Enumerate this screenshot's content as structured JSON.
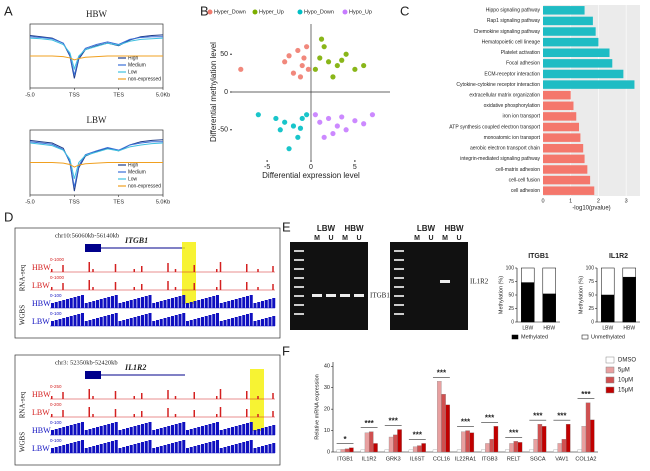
{
  "panel_labels": [
    "A",
    "B",
    "C",
    "D",
    "E",
    "F"
  ],
  "chart_data": [
    {
      "type": "line",
      "title": "HBW",
      "x": [
        0,
        0.25,
        0.5,
        0.75,
        0.9,
        1,
        1.1,
        1.25,
        1.5,
        1.75,
        2,
        2.25,
        2.5,
        2.75,
        3
      ],
      "xlim": [
        0,
        3
      ],
      "xticks": [
        {
          "value": 0,
          "label": "-5.0"
        },
        {
          "value": 1,
          "label": "TSS"
        },
        {
          "value": 2,
          "label": "TES"
        },
        {
          "value": 3,
          "label": "5.0Kb"
        }
      ],
      "ylim": [
        0,
        1
      ],
      "legend": "lower right",
      "series": [
        {
          "name": "High",
          "color": "#1f3c88",
          "values": [
            0.82,
            0.8,
            0.78,
            0.7,
            0.5,
            0.15,
            0.45,
            0.6,
            0.66,
            0.7,
            0.66,
            0.75,
            0.8,
            0.82,
            0.83
          ]
        },
        {
          "name": "Medium",
          "color": "#3a6fd8",
          "values": [
            0.8,
            0.79,
            0.77,
            0.7,
            0.52,
            0.2,
            0.48,
            0.62,
            0.68,
            0.72,
            0.68,
            0.76,
            0.79,
            0.8,
            0.8
          ]
        },
        {
          "name": "Low",
          "color": "#40c0e0",
          "values": [
            0.78,
            0.77,
            0.75,
            0.68,
            0.55,
            0.3,
            0.5,
            0.6,
            0.65,
            0.7,
            0.67,
            0.73,
            0.76,
            0.77,
            0.78
          ]
        },
        {
          "name": "non-expressed",
          "color": "#f0a020",
          "values": [
            0.5,
            0.5,
            0.5,
            0.49,
            0.47,
            0.44,
            0.46,
            0.48,
            0.49,
            0.5,
            0.5,
            0.5,
            0.5,
            0.5,
            0.5
          ]
        }
      ]
    },
    {
      "type": "line",
      "title": "LBW",
      "x": [
        0,
        0.25,
        0.5,
        0.75,
        0.9,
        1,
        1.1,
        1.25,
        1.5,
        1.75,
        2,
        2.25,
        2.5,
        2.75,
        3
      ],
      "xlim": [
        0,
        3
      ],
      "xticks": [
        {
          "value": 0,
          "label": "-5.0"
        },
        {
          "value": 1,
          "label": "TSS"
        },
        {
          "value": 2,
          "label": "TES"
        },
        {
          "value": 3,
          "label": "5.0Kb"
        }
      ],
      "ylim": [
        0,
        1
      ],
      "legend": "lower right",
      "series": [
        {
          "name": "High",
          "color": "#1f3c88",
          "values": [
            0.84,
            0.82,
            0.8,
            0.72,
            0.5,
            0.06,
            0.42,
            0.6,
            0.67,
            0.72,
            0.68,
            0.77,
            0.82,
            0.84,
            0.85
          ]
        },
        {
          "name": "Medium",
          "color": "#3a6fd8",
          "values": [
            0.82,
            0.8,
            0.78,
            0.7,
            0.52,
            0.12,
            0.45,
            0.62,
            0.68,
            0.73,
            0.69,
            0.77,
            0.8,
            0.82,
            0.82
          ]
        },
        {
          "name": "Low",
          "color": "#40c0e0",
          "values": [
            0.8,
            0.78,
            0.76,
            0.69,
            0.55,
            0.25,
            0.5,
            0.61,
            0.66,
            0.71,
            0.68,
            0.74,
            0.77,
            0.79,
            0.8
          ]
        },
        {
          "name": "non-expressed",
          "color": "#f0a020",
          "values": [
            0.5,
            0.5,
            0.5,
            0.49,
            0.47,
            0.43,
            0.46,
            0.48,
            0.49,
            0.5,
            0.5,
            0.5,
            0.5,
            0.5,
            0.5
          ]
        }
      ]
    },
    {
      "type": "scatter",
      "xlabel": "Differential expression level",
      "ylabel": "Differential methylation level",
      "xlim": [
        -9,
        9
      ],
      "xticks": [
        -5,
        0,
        5
      ],
      "ylim": [
        -90,
        90
      ],
      "yticks": [
        -50,
        0,
        50
      ],
      "legend": "top",
      "series": [
        {
          "name": "Hyper_Down",
          "color": "#f07b6e",
          "x": [
            -8,
            -3,
            -2,
            -1.5,
            -1,
            -0.8,
            -0.5,
            -0.3,
            -1.2,
            -2.5
          ],
          "values": [
            30,
            40,
            25,
            55,
            35,
            45,
            60,
            30,
            20,
            48
          ]
        },
        {
          "name": "Hyper_Up",
          "color": "#7cae00",
          "x": [
            0.5,
            1,
            1.5,
            2,
            3,
            4,
            5,
            6,
            2.5,
            1.2,
            3.5
          ],
          "values": [
            30,
            45,
            60,
            40,
            35,
            50,
            30,
            35,
            20,
            70,
            42
          ]
        },
        {
          "name": "Hypo_Down",
          "color": "#00bfc4",
          "x": [
            -6,
            -4,
            -3,
            -2,
            -1.5,
            -1,
            -0.5,
            -2.5,
            -3.5,
            -1.2
          ],
          "values": [
            -30,
            -35,
            -40,
            -45,
            -60,
            -35,
            -30,
            -75,
            -50,
            -48
          ]
        },
        {
          "name": "Hypo_Up",
          "color": "#c77cff",
          "x": [
            0.5,
            1,
            2,
            3,
            4,
            5,
            6,
            7,
            1.5,
            2.5,
            3.5
          ],
          "values": [
            -30,
            -40,
            -35,
            -45,
            -50,
            -38,
            -42,
            -30,
            -60,
            -55,
            -33
          ]
        }
      ]
    },
    {
      "type": "barh",
      "xlabel": "-log10(pvalue)",
      "xlim": [
        0,
        3.5
      ],
      "xticks": [
        0,
        1,
        2,
        3
      ],
      "categories": [
        "Hippo signaling pathway",
        "Rap1 signaling pathway",
        "Chemokine signaling pathway",
        "Hematopoietic cell lineage",
        "Platelet activation",
        "Focal adhesion",
        "ECM-receptor interaction",
        "Cytokine-cytokine receptor interaction",
        "extracellular matrix organization",
        "oxidative phosphorylation",
        "iron ion transport",
        "ATP synthesis coupled electron transport",
        "monoatomic ion transport",
        "aerobic electron transport chain",
        "integrin-mediated signaling pathway",
        "cell-matrix adhesion",
        "cell-cell fusion",
        "cell adhesion"
      ],
      "values": [
        1.5,
        1.8,
        1.9,
        2.0,
        2.4,
        2.5,
        2.9,
        3.3,
        1.0,
        1.1,
        1.2,
        1.3,
        1.35,
        1.45,
        1.5,
        1.6,
        1.7,
        1.85
      ],
      "colors": [
        "#1fbcc4",
        "#1fbcc4",
        "#1fbcc4",
        "#1fbcc4",
        "#1fbcc4",
        "#1fbcc4",
        "#1fbcc4",
        "#1fbcc4",
        "#f4776c",
        "#f4776c",
        "#f4776c",
        "#f4776c",
        "#f4776c",
        "#f4776c",
        "#f4776c",
        "#f4776c",
        "#f4776c",
        "#f4776c"
      ]
    },
    {
      "type": "stacked_bar",
      "title": "ITGB1",
      "ylabel": "Methylation (%)",
      "ylim": [
        0,
        100
      ],
      "yticks": [
        0,
        25,
        50,
        75,
        100
      ],
      "categories": [
        "LBW",
        "HBW"
      ],
      "legend": "bottom",
      "series": [
        {
          "name": "Methylated",
          "color": "#000000",
          "values": [
            73,
            52
          ]
        },
        {
          "name": "Unmethylated",
          "color": "#ffffff",
          "values": [
            27,
            48
          ]
        }
      ]
    },
    {
      "type": "stacked_bar",
      "title": "IL1R2",
      "ylabel": "Methylation (%)",
      "ylim": [
        0,
        100
      ],
      "yticks": [
        0,
        25,
        50,
        75,
        100
      ],
      "categories": [
        "LBW",
        "HBW"
      ],
      "series": [
        {
          "color": "#000000",
          "values": [
            50,
            83
          ]
        },
        {
          "color": "#ffffff",
          "values": [
            50,
            17
          ]
        }
      ]
    },
    {
      "type": "bar",
      "ylabel": "Relative mRNA expression",
      "ylim": [
        0,
        42
      ],
      "yticks": [
        0,
        10,
        20,
        30,
        40
      ],
      "legend": "upper right",
      "categories": [
        "ITGB1",
        "IL1R2",
        "GRK3",
        "IL6ST",
        "CCL16",
        "IL22RA1",
        "ITGB3",
        "RELT",
        "SGCA",
        "VAV1",
        "COL1A2"
      ],
      "significance": [
        "*",
        "***",
        "***",
        "***",
        "***",
        "***",
        "***",
        "***",
        "***",
        "***",
        "***"
      ],
      "series": [
        {
          "name": "DMSO",
          "color": "#ffffff",
          "values": [
            1,
            1,
            1,
            1,
            1,
            1,
            1,
            1,
            1,
            1,
            1
          ]
        },
        {
          "name": "5μM",
          "color": "#e8a0a0",
          "values": [
            1.2,
            9,
            7,
            2.5,
            33,
            9.5,
            4,
            4,
            6,
            4,
            12
          ]
        },
        {
          "name": "10μM",
          "color": "#d05050",
          "values": [
            1.5,
            9.5,
            8,
            3,
            27,
            10,
            6,
            5,
            13,
            6,
            23
          ]
        },
        {
          "name": "15μM",
          "color": "#c00000",
          "values": [
            2,
            4,
            10.5,
            4,
            22,
            9,
            12,
            4.5,
            12,
            13,
            15
          ]
        }
      ]
    }
  ],
  "tracks": [
    {
      "region": "chr10:56060kb-56140kb",
      "gene": "ITGB1",
      "rna_label": "RNA-seq",
      "wgbs_label": "WGBS",
      "rows": [
        {
          "name": "HBW",
          "range": "0-1000"
        },
        {
          "name": "LBW",
          "range": "0-1000"
        },
        {
          "name": "HBW",
          "range": "0-100"
        },
        {
          "name": "LBW",
          "range": "0-100"
        }
      ]
    },
    {
      "region": "chr3: 52350kb-52420kb",
      "gene": "IL1R2",
      "rna_label": "RNA-seq",
      "wgbs_label": "WGBS",
      "rows": [
        {
          "name": "HBW",
          "range": "0-250"
        },
        {
          "name": "LBW",
          "range": "0-200"
        },
        {
          "name": "HBW",
          "range": "0-100"
        },
        {
          "name": "LBW",
          "range": "0-100"
        }
      ]
    }
  ],
  "gels": [
    {
      "groups": [
        "LBW",
        "HBW"
      ],
      "lanes": [
        "M",
        "U",
        "M",
        "U"
      ],
      "gene": "ITGB1"
    },
    {
      "groups": [
        "LBW",
        "HBW"
      ],
      "lanes": [
        "M",
        "U",
        "M",
        "U"
      ],
      "gene": "IL1R2"
    }
  ]
}
